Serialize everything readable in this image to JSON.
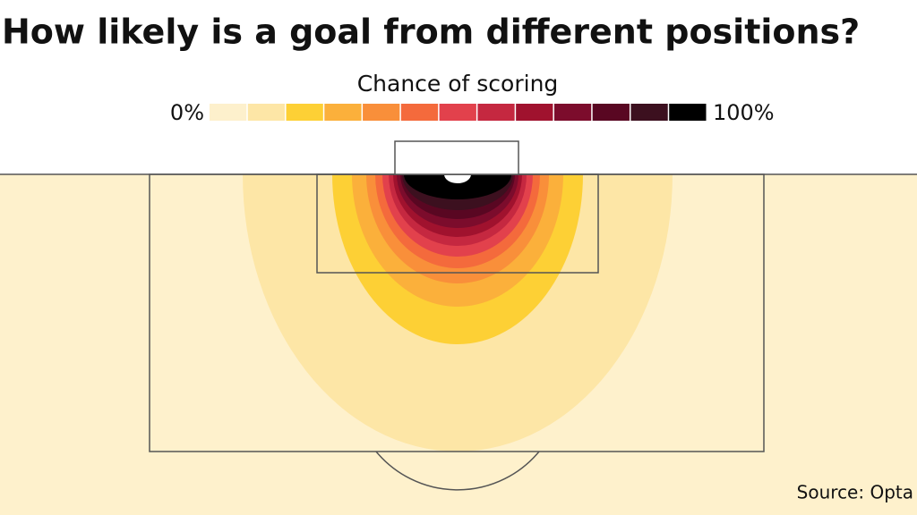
{
  "chart_data": {
    "type": "contour",
    "title": "How likely is a goal from different positions?",
    "colorbar_title": "Chance of scoring",
    "clim": [
      0,
      100
    ],
    "colorbar_ticks": [
      {
        "value": 0,
        "label": "0%"
      },
      {
        "value": 100,
        "label": "100%"
      }
    ],
    "colors": [
      "#fdf0cc",
      "#fde6a6",
      "#fdd035",
      "#fbb03b",
      "#f98f3a",
      "#f46a3c",
      "#e2414c",
      "#c52840",
      "#a0122e",
      "#7c0c2c",
      "#590722",
      "#3c101f",
      "#000000"
    ],
    "source": "Source: Opta"
  }
}
